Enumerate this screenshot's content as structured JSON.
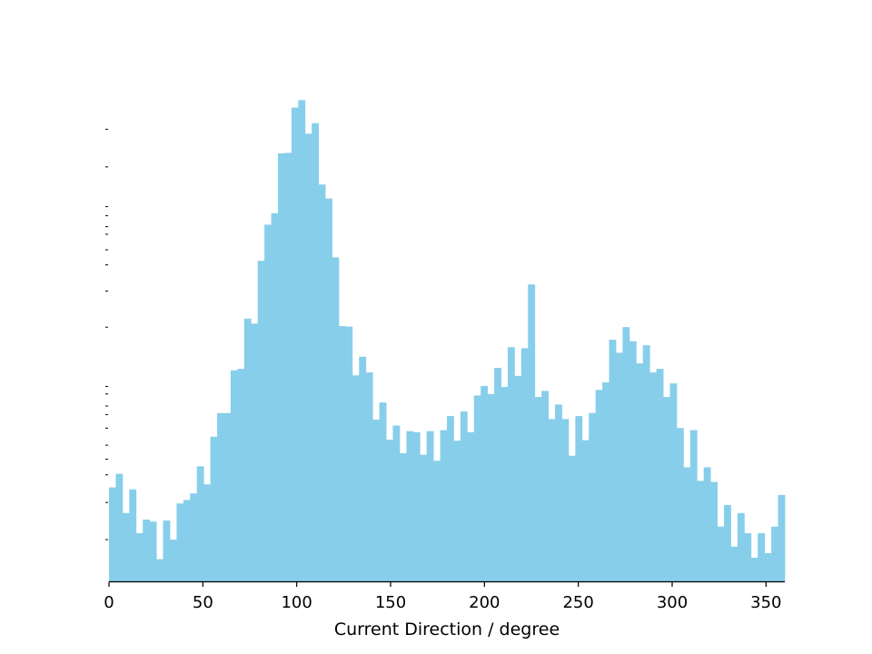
{
  "chart_data": {
    "type": "bar",
    "xlabel": "Current Direction / degree",
    "ylabel": "",
    "xlim": [
      0,
      360
    ],
    "ylim": [
      0,
      1
    ],
    "bin_width": 3.6,
    "bar_color": "#87ceeb",
    "x_ticks": [
      0,
      50,
      100,
      150,
      200,
      250,
      300,
      350
    ],
    "x_tick_labels": [
      "0",
      "50",
      "100",
      "150",
      "200",
      "250",
      "300",
      "350"
    ],
    "y_minor_ticks": [
      0.083,
      0.157,
      0.212,
      0.243,
      0.271,
      0.305,
      0.332,
      0.349,
      0.373,
      0.388,
      0.506,
      0.578,
      0.63,
      0.66,
      0.691,
      0.706,
      0.728,
      0.746,
      0.825,
      0.9
    ],
    "bin_starts": [
      0,
      3.6,
      7.2,
      10.8,
      14.4,
      18,
      21.6,
      25.2,
      28.8,
      32.4,
      36,
      39.6,
      43.2,
      46.8,
      50.4,
      54,
      57.6,
      61.2,
      64.8,
      68.4,
      72,
      75.6,
      79.2,
      82.8,
      86.4,
      90,
      93.6,
      97.2,
      100.8,
      104.4,
      108,
      111.6,
      115.2,
      118.8,
      122.4,
      126,
      129.6,
      133.2,
      136.8,
      140.4,
      144,
      147.6,
      151.2,
      154.8,
      158.4,
      162,
      165.6,
      169.2,
      172.8,
      176.4,
      180,
      183.6,
      187.2,
      190.8,
      194.4,
      198,
      201.6,
      205.2,
      208.8,
      212.4,
      216,
      219.6,
      223.2,
      226.8,
      230.4,
      234,
      237.6,
      241.2,
      244.8,
      248.4,
      252,
      255.6,
      259.2,
      262.8,
      266.4,
      270,
      273.6,
      277.2,
      280.8,
      284.4,
      288,
      291.6,
      295.2,
      298.8,
      302.4,
      306,
      309.6,
      313.2,
      316.8,
      320.4,
      324,
      327.6,
      331.2,
      334.8,
      338.4,
      342,
      345.6,
      349.2,
      352.8,
      356.4
    ],
    "values": [
      0.187,
      0.214,
      0.136,
      0.183,
      0.096,
      0.123,
      0.119,
      0.044,
      0.121,
      0.083,
      0.155,
      0.162,
      0.175,
      0.229,
      0.193,
      0.288,
      0.335,
      0.335,
      0.42,
      0.423,
      0.523,
      0.513,
      0.638,
      0.71,
      0.733,
      0.852,
      0.853,
      0.943,
      0.958,
      0.891,
      0.912,
      0.79,
      0.762,
      0.645,
      0.508,
      0.507,
      0.41,
      0.447,
      0.416,
      0.322,
      0.356,
      0.282,
      0.31,
      0.255,
      0.299,
      0.297,
      0.252,
      0.299,
      0.24,
      0.301,
      0.329,
      0.28,
      0.338,
      0.297,
      0.37,
      0.389,
      0.373,
      0.425,
      0.387,
      0.466,
      0.409,
      0.464,
      0.591,
      0.367,
      0.379,
      0.323,
      0.352,
      0.323,
      0.25,
      0.329,
      0.281,
      0.335,
      0.381,
      0.396,
      0.481,
      0.455,
      0.506,
      0.478,
      0.434,
      0.47,
      0.416,
      0.423,
      0.367,
      0.394,
      0.305,
      0.227,
      0.301,
      0.2,
      0.227,
      0.198,
      0.109,
      0.152,
      0.069,
      0.136,
      0.096,
      0.047,
      0.096,
      0.056,
      0.109,
      0.172
    ]
  }
}
